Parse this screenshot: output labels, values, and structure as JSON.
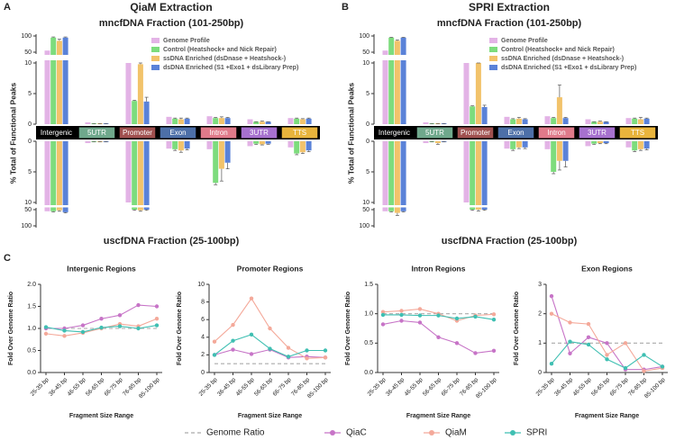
{
  "chart_data": [
    {
      "type": "mirrored-bar",
      "panel": "A",
      "title": "QiaM Extraction",
      "y_label": "% Total of Functional Peaks",
      "categories": [
        "Intergenic",
        "5UTR",
        "Promoter",
        "Exon",
        "Intron",
        "3UTR",
        "TTS"
      ],
      "category_colors": [
        "#000000",
        "#6fa88c",
        "#a0504f",
        "#4d6fa8",
        "#e07a8a",
        "#a771cf",
        "#e9b43c"
      ],
      "ylim": [
        0,
        10
      ],
      "yticks": [
        0,
        5,
        10
      ],
      "ylim_broken": [
        50,
        100
      ],
      "yticks_broken": [
        50,
        100
      ],
      "upper": {
        "title": "mncfDNA Fraction (101-250bp)",
        "series": [
          {
            "name": "Genome Profile",
            "color": "#e3b3e6",
            "values": [
              55,
              0.3,
              10,
              1.2,
              1.3,
              0.8,
              1.0
            ]
          },
          {
            "name": "Control (Heatshock+ and Nick Repair)",
            "color": "#7ddc7d",
            "values": [
              95,
              0.1,
              3.8,
              0.9,
              1.0,
              0.4,
              0.9
            ],
            "errors": [
              2,
              0,
              0.1,
              0.1,
              0.1,
              0,
              0.1
            ]
          },
          {
            "name": "ssDNA Enriched (dsDnase + Heatshock-)",
            "color": "#f2c36b",
            "values": [
              85,
              0.1,
              9.8,
              0.8,
              1.0,
              0.4,
              0.8
            ],
            "errors": [
              5,
              0,
              0.4,
              0.2,
              0.2,
              0.1,
              0.1
            ]
          },
          {
            "name": "dsDNA Enriched (S1 +Exo1 + dsLibrary Prep)",
            "color": "#5a82d8",
            "values": [
              95,
              0.1,
              3.7,
              0.9,
              1.0,
              0.4,
              0.9
            ],
            "errors": [
              2,
              0,
              0.7,
              0.1,
              0.1,
              0,
              0.1
            ]
          }
        ]
      },
      "lower": {
        "title": "uscfDNA Fraction (25-100bp)",
        "series": [
          {
            "values": [
              55,
              0.3,
              10,
              1.2,
              1.3,
              0.8,
              1.0
            ]
          },
          {
            "values": [
              55,
              0.1,
              50,
              1.3,
              6.8,
              0.4,
              2.0
            ],
            "errors": [
              2,
              0,
              2,
              0.2,
              0.3,
              0.1,
              0.2
            ]
          },
          {
            "values": [
              52,
              0.1,
              52,
              1.5,
              4.5,
              0.5,
              1.8
            ],
            "errors": [
              3,
              0,
              3,
              0.3,
              2.0,
              0.1,
              0.2
            ]
          },
          {
            "values": [
              58,
              0.1,
              50,
              1.2,
              3.5,
              0.4,
              1.5
            ],
            "errors": [
              2,
              0,
              2,
              0.2,
              1.0,
              0.1,
              0.2
            ]
          }
        ]
      }
    },
    {
      "type": "mirrored-bar",
      "panel": "B",
      "title": "SPRI Extraction",
      "y_label": "% Total of Functional Peaks",
      "categories": [
        "Intergenic",
        "5UTR",
        "Promoter",
        "Exon",
        "Intron",
        "3UTR",
        "TTS"
      ],
      "category_colors": [
        "#000000",
        "#6fa88c",
        "#a0504f",
        "#4d6fa8",
        "#e07a8a",
        "#a771cf",
        "#e9b43c"
      ],
      "ylim": [
        0,
        10
      ],
      "yticks": [
        0,
        5,
        10
      ],
      "ylim_broken": [
        50,
        100
      ],
      "yticks_broken": [
        50,
        100
      ],
      "upper": {
        "title": "mncfDNA Fraction (101-250bp)",
        "series": [
          {
            "name": "Genome Profile",
            "color": "#e3b3e6",
            "values": [
              55,
              0.3,
              10,
              1.2,
              1.3,
              0.8,
              1.0
            ]
          },
          {
            "name": "Control (Heatshock+ and Nick Repair)",
            "color": "#7ddc7d",
            "values": [
              95,
              0.1,
              2.9,
              0.8,
              1.0,
              0.4,
              0.9
            ],
            "errors": [
              1,
              0,
              0.1,
              0.1,
              0.1,
              0,
              0.1
            ]
          },
          {
            "name": "ssDNA Enriched (dsDnase + Heatshock-)",
            "color": "#f2c36b",
            "values": [
              85,
              0.1,
              10,
              0.9,
              4.4,
              0.4,
              0.8
            ],
            "errors": [
              3,
              0,
              0.3,
              0.2,
              2.0,
              0.1,
              0.3
            ]
          },
          {
            "name": "dsDNA Enriched (S1 +Exo1 + dsLibrary Prep)",
            "color": "#5a82d8",
            "values": [
              95,
              0.1,
              2.8,
              0.8,
              1.0,
              0.4,
              0.9
            ],
            "errors": [
              1,
              0,
              0.3,
              0.1,
              0.1,
              0,
              0.1
            ]
          }
        ]
      },
      "lower": {
        "title": "uscfDNA Fraction (25-100bp)",
        "series": [
          {
            "values": [
              55,
              0.3,
              10,
              1.2,
              1.3,
              0.8,
              1.0
            ]
          },
          {
            "values": [
              55,
              0.1,
              50,
              1.3,
              5.0,
              0.4,
              1.5
            ],
            "errors": [
              2,
              0,
              2,
              0.2,
              0.3,
              0.1,
              0.2
            ]
          },
          {
            "values": [
              60,
              0.3,
              50,
              1.0,
              3.2,
              0.3,
              1.3
            ],
            "errors": [
              8,
              0.2,
              4,
              0.2,
              1.5,
              0.1,
              0.2
            ]
          },
          {
            "values": [
              55,
              0.1,
              50,
              1.0,
              3.2,
              0.3,
              1.2
            ],
            "errors": [
              2,
              0,
              2,
              0.2,
              1.0,
              0.1,
              0.2
            ]
          }
        ]
      }
    },
    {
      "type": "line-group",
      "panel": "C",
      "x_label": "Fragment Size Range",
      "y_label": "Fold Over Genome Ratio",
      "categories": [
        "25-35 bp",
        "36-45 bp",
        "46-55 bp",
        "56-65 bp",
        "66-75 bp",
        "76-85 bp",
        "85-100 bp"
      ],
      "series": [
        {
          "name": "Genome Ratio",
          "color": "#aaaaaa",
          "dashed": true
        },
        {
          "name": "QiaC",
          "color": "#c774c7"
        },
        {
          "name": "QiaM",
          "color": "#f4a99a"
        },
        {
          "name": "SPRI",
          "color": "#3fbfb2"
        }
      ],
      "charts": [
        {
          "title": "Intergenic Regions",
          "ylim": [
            0,
            2
          ],
          "yticks": [
            {
              "value": 0,
              "label": "0.0"
            },
            0.5,
            {
              "value": 1,
              "label": "1.0"
            },
            1.5,
            {
              "value": 2,
              "label": "2.0"
            }
          ],
          "values": [
            [
              1,
              1,
              1,
              1,
              1,
              1,
              1
            ],
            [
              1.0,
              1.0,
              1.07,
              1.22,
              1.3,
              1.53,
              1.5
            ],
            [
              0.88,
              0.83,
              0.9,
              1.0,
              1.1,
              1.05,
              1.22
            ],
            [
              1.03,
              0.95,
              0.92,
              1.02,
              1.05,
              1.0,
              1.07
            ]
          ]
        },
        {
          "title": "Promoter Regions",
          "ylim": [
            0,
            10
          ],
          "yticks": [
            0,
            2,
            4,
            6,
            8,
            10
          ],
          "values": [
            [
              1,
              1,
              1,
              1,
              1,
              1,
              1
            ],
            [
              2.0,
              2.6,
              2.1,
              2.6,
              1.7,
              1.8,
              1.7
            ],
            [
              3.5,
              5.4,
              8.4,
              5.0,
              2.8,
              1.6,
              1.7
            ],
            [
              2.0,
              3.6,
              4.3,
              2.7,
              1.8,
              2.5,
              2.5
            ]
          ]
        },
        {
          "title": "Intron Regions",
          "ylim": [
            0,
            1.5
          ],
          "yticks": [
            {
              "value": 0,
              "label": "0.0"
            },
            0.5,
            {
              "value": 1,
              "label": "1.0"
            },
            1.5
          ],
          "values": [
            [
              1,
              1,
              1,
              1,
              1,
              1,
              1
            ],
            [
              0.82,
              0.88,
              0.85,
              0.6,
              0.5,
              0.33,
              0.37
            ],
            [
              1.03,
              1.05,
              1.08,
              1.0,
              0.88,
              0.97,
              0.99
            ],
            [
              0.98,
              0.98,
              0.97,
              0.97,
              0.92,
              0.95,
              0.9
            ]
          ]
        },
        {
          "title": "Exon Regions",
          "ylim": [
            0,
            3
          ],
          "yticks": [
            0,
            1,
            2,
            3
          ],
          "values": [
            [
              1,
              1,
              1,
              1,
              1,
              1,
              1
            ],
            [
              2.6,
              0.65,
              1.2,
              1.0,
              0.1,
              0.1,
              0.2
            ],
            [
              2.0,
              1.7,
              1.65,
              0.6,
              1.0,
              0.05,
              0.15
            ],
            [
              0.3,
              1.05,
              0.95,
              0.45,
              0.15,
              0.6,
              0.2
            ]
          ]
        }
      ]
    }
  ]
}
